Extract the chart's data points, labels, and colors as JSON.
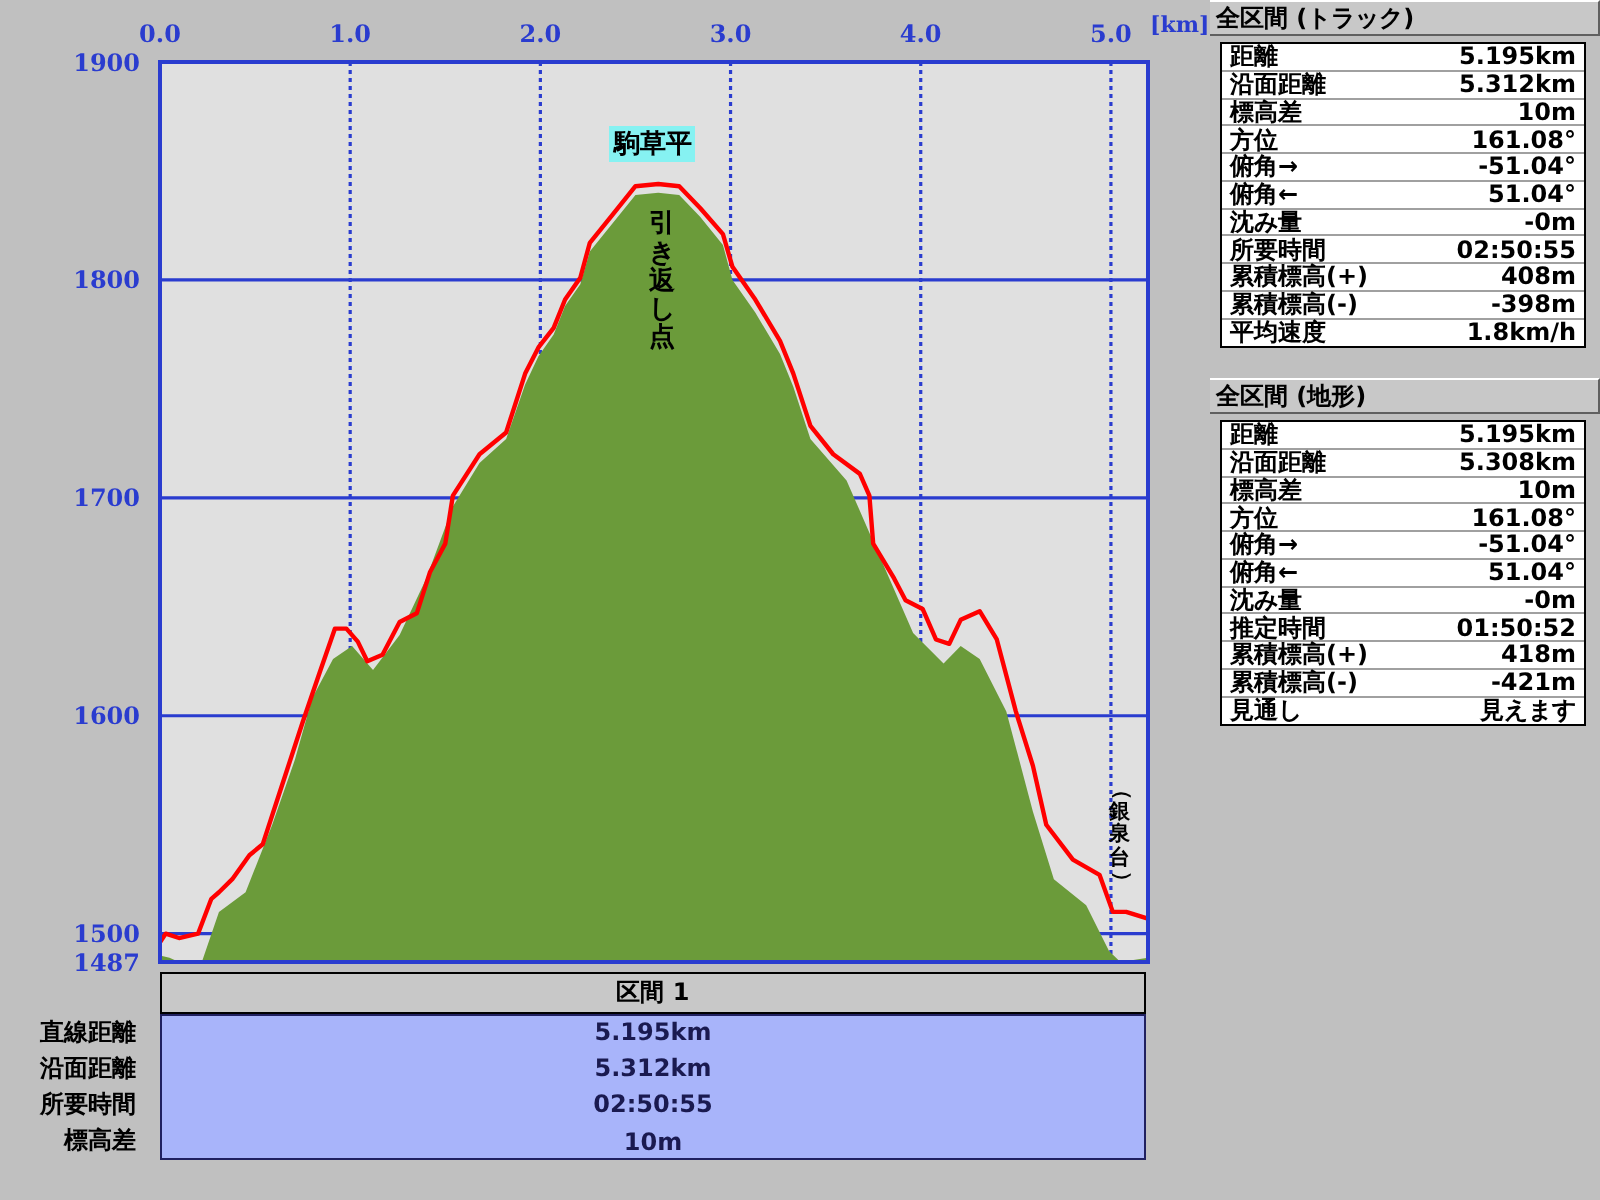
{
  "chart_data": [
    {
      "type": "area",
      "xlabel": "[km]",
      "xlim": [
        0,
        5.195
      ],
      "xticks": [
        {
          "value": 0,
          "label": "0.0"
        },
        {
          "value": 1,
          "label": "1.0"
        },
        {
          "value": 2,
          "label": "2.0"
        },
        {
          "value": 3,
          "label": "3.0"
        },
        {
          "value": 4,
          "label": "4.0"
        },
        {
          "value": 5,
          "label": "5.0"
        }
      ],
      "ylim": [
        1487,
        1900
      ],
      "yticks": [
        1487,
        1500,
        1600,
        1700,
        1800,
        1900
      ],
      "grid": true,
      "series": [
        {
          "type": "area",
          "color": "#6b9b3a",
          "x": [
            0,
            0.05,
            0.1,
            0.22,
            0.31,
            0.45,
            0.59,
            0.71,
            0.8,
            0.91,
            1.01,
            1.12,
            1.26,
            1.4,
            1.54,
            1.68,
            1.82,
            1.92,
            1.99,
            2.07,
            2.13,
            2.21,
            2.26,
            2.38,
            2.5,
            2.62,
            2.73,
            2.84,
            2.96,
            3.01,
            3.13,
            3.26,
            3.33,
            3.42,
            3.61,
            3.73,
            3.96,
            4.12,
            4.21,
            4.31,
            4.45,
            4.59,
            4.7,
            4.87,
            4.99,
            5.05,
            5.195
          ],
          "values": [
            1490,
            1489,
            1487,
            1487,
            1510,
            1519,
            1550,
            1580,
            1608,
            1626,
            1632,
            1621,
            1637,
            1663,
            1696,
            1716,
            1727,
            1752,
            1765,
            1775,
            1788,
            1798,
            1813,
            1826,
            1839,
            1840,
            1839,
            1829,
            1816,
            1800,
            1785,
            1766,
            1751,
            1727,
            1708,
            1684,
            1638,
            1624,
            1632,
            1626,
            1602,
            1556,
            1525,
            1513,
            1492,
            1487,
            1489
          ]
        },
        {
          "type": "line",
          "color": "#ff0000",
          "x": [
            0,
            0.03,
            0.1,
            0.2,
            0.27,
            0.31,
            0.38,
            0.47,
            0.54,
            0.63,
            0.75,
            0.84,
            0.92,
            0.98,
            1.04,
            1.09,
            1.17,
            1.26,
            1.35,
            1.42,
            1.5,
            1.54,
            1.68,
            1.82,
            1.92,
            1.99,
            2.07,
            2.13,
            2.21,
            2.26,
            2.38,
            2.5,
            2.62,
            2.73,
            2.84,
            2.96,
            3.01,
            3.13,
            3.26,
            3.33,
            3.42,
            3.54,
            3.68,
            3.73,
            3.75,
            3.86,
            3.92,
            4.01,
            4.08,
            4.15,
            4.21,
            4.31,
            4.4,
            4.5,
            4.59,
            4.66,
            4.8,
            4.94,
            5.01,
            5.08,
            5.19
          ],
          "values": [
            1496,
            1500,
            1498,
            1500,
            1516,
            1519,
            1525,
            1536,
            1541,
            1565,
            1597,
            1620,
            1640,
            1640,
            1634,
            1625,
            1628,
            1643,
            1647,
            1666,
            1679,
            1701,
            1720,
            1730,
            1757,
            1769,
            1778,
            1791,
            1801,
            1817,
            1830,
            1843,
            1844,
            1843,
            1833,
            1821,
            1806,
            1791,
            1772,
            1757,
            1733,
            1720,
            1711,
            1701,
            1679,
            1663,
            1653,
            1649,
            1635,
            1633,
            1644,
            1648,
            1635,
            1602,
            1577,
            1550,
            1534,
            1527,
            1510,
            1510,
            1507
          ]
        }
      ],
      "annotations": [
        {
          "text": "駒草平",
          "x": 2.59,
          "y": 1862
        },
        "引き返し点",
        "（銀泉台）"
      ]
    },
    {
      "type": "other",
      "title": "区間 1",
      "annotations": [
        "直線距離",
        "5.195km",
        "沿面距離",
        "5.312km",
        "所要時間",
        "02:50:55",
        "標高差",
        "10m"
      ]
    },
    {
      "type": "other",
      "title": "全区間 (トラック)",
      "annotations": [
        "距離",
        "5.195km",
        "沿面距離",
        "5.312km",
        "標高差",
        "10m",
        "方位",
        "161.08°",
        "俯角→",
        "-51.04°",
        "俯角←",
        "51.04°",
        "沈み量",
        "-0m",
        "所要時間",
        "02:50:55",
        "累積標高(+)",
        "408m",
        "累積標高(-)",
        "-398m",
        "平均速度",
        "1.8km/h"
      ]
    },
    {
      "type": "other",
      "title": "全区間 (地形)",
      "annotations": [
        "距離",
        "5.195km",
        "沿面距離",
        "5.308km",
        "標高差",
        "10m",
        "方位",
        "161.08°",
        "俯角→",
        "-51.04°",
        "俯角←",
        "51.04°",
        "沈み量",
        "-0m",
        "推定時間",
        "01:50:52",
        "累積標高(+)",
        "418m",
        "累積標高(-)",
        "-421m",
        "見通し",
        "見えます"
      ]
    }
  ]
}
